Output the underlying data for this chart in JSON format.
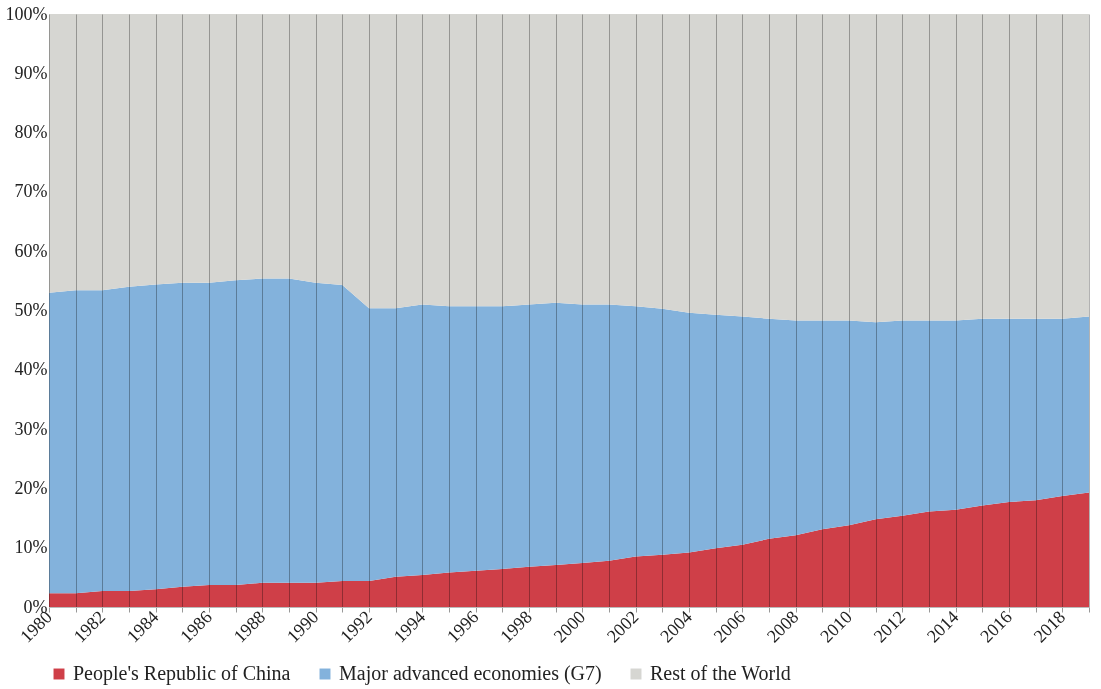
{
  "chart_data": {
    "type": "area",
    "stacked": true,
    "legend": "bottom",
    "grid": "x",
    "x": [
      1980,
      1981,
      1982,
      1983,
      1984,
      1985,
      1986,
      1987,
      1988,
      1989,
      1990,
      1991,
      1992,
      1993,
      1994,
      1995,
      1996,
      1997,
      1998,
      1999,
      2000,
      2001,
      2002,
      2003,
      2004,
      2005,
      2006,
      2007,
      2008,
      2009,
      2010,
      2011,
      2012,
      2013,
      2014,
      2015,
      2016,
      2017,
      2018,
      2019
    ],
    "xlim": [
      1980,
      2019
    ],
    "xticks": [
      1980,
      {
        "value": 1981,
        "label": null
      },
      1982,
      {
        "value": 1983,
        "label": null
      },
      1984,
      {
        "value": 1985,
        "label": null
      },
      1986,
      {
        "value": 1987,
        "label": null
      },
      1988,
      {
        "value": 1989,
        "label": null
      },
      1990,
      {
        "value": 1991,
        "label": null
      },
      1992,
      {
        "value": 1993,
        "label": null
      },
      1994,
      {
        "value": 1995,
        "label": null
      },
      1996,
      {
        "value": 1997,
        "label": null
      },
      1998,
      {
        "value": 1999,
        "label": null
      },
      2000,
      {
        "value": 2001,
        "label": null
      },
      2002,
      {
        "value": 2003,
        "label": null
      },
      2004,
      {
        "value": 2005,
        "label": null
      },
      2006,
      {
        "value": 2007,
        "label": null
      },
      2008,
      {
        "value": 2009,
        "label": null
      },
      2010,
      {
        "value": 2011,
        "label": null
      },
      2012,
      {
        "value": 2013,
        "label": null
      },
      2014,
      {
        "value": 2015,
        "label": null
      },
      2016,
      {
        "value": 2017,
        "label": null
      },
      2018,
      {
        "value": 2019,
        "label": null
      }
    ],
    "ylim": [
      0,
      100
    ],
    "yticks": [
      {
        "value": 0,
        "label": "0%"
      },
      {
        "value": 10,
        "label": "10%"
      },
      {
        "value": 20,
        "label": "20%"
      },
      {
        "value": 30,
        "label": "30%"
      },
      {
        "value": 40,
        "label": "40%"
      },
      {
        "value": 50,
        "label": "50%"
      },
      {
        "value": 60,
        "label": "60%"
      },
      {
        "value": 70,
        "label": "70%"
      },
      {
        "value": 80,
        "label": "80%"
      },
      {
        "value": 90,
        "label": "90%"
      },
      {
        "value": 100,
        "label": "100%"
      }
    ],
    "series": [
      {
        "name": "People's Republic of China",
        "color": "#cf3f48",
        "values": [
          2.3,
          2.3,
          2.7,
          2.7,
          3.0,
          3.4,
          3.7,
          3.7,
          4.1,
          4.1,
          4.1,
          4.4,
          4.4,
          5.1,
          5.4,
          5.8,
          6.1,
          6.4,
          6.8,
          7.1,
          7.4,
          7.8,
          8.5,
          8.8,
          9.2,
          9.9,
          10.5,
          11.5,
          12.1,
          13.1,
          13.8,
          14.8,
          15.4,
          16.1,
          16.4,
          17.1,
          17.7,
          18.0,
          18.7,
          19.3
        ]
      },
      {
        "name": "Major advanced economies (G7)",
        "color": "#83b2dc",
        "values": [
          50.7,
          51.1,
          50.7,
          51.3,
          51.4,
          51.3,
          51.0,
          51.4,
          51.3,
          51.3,
          50.6,
          49.9,
          46.0,
          45.3,
          45.6,
          44.9,
          44.6,
          44.3,
          44.2,
          44.2,
          43.6,
          43.2,
          42.2,
          41.5,
          40.4,
          39.4,
          38.5,
          37.1,
          36.2,
          35.2,
          34.5,
          33.2,
          32.9,
          32.2,
          31.9,
          31.5,
          30.9,
          30.6,
          29.9,
          29.7
        ]
      },
      {
        "name": "Rest of the World",
        "color": "#d6d6d2",
        "values": [
          47.0,
          46.6,
          46.6,
          46.0,
          45.6,
          45.3,
          45.3,
          44.9,
          44.6,
          44.6,
          45.3,
          45.7,
          49.6,
          49.6,
          49.0,
          49.3,
          49.3,
          49.3,
          49.0,
          48.7,
          49.0,
          49.0,
          49.3,
          49.7,
          50.4,
          50.7,
          51.0,
          51.4,
          51.7,
          51.7,
          51.7,
          52.0,
          51.7,
          51.7,
          51.7,
          51.4,
          51.4,
          51.4,
          51.4,
          51.0
        ]
      }
    ]
  }
}
